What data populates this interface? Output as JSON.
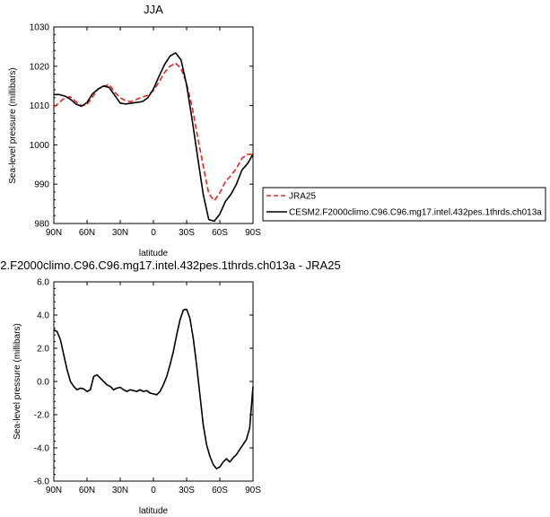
{
  "chart_data": [
    {
      "type": "line",
      "title": "JJA",
      "xlabel": "latitude",
      "ylabel": "Sea-level pressure (millibars)",
      "xlim": [
        90,
        -90
      ],
      "ylim": [
        980,
        1030
      ],
      "x_ticks": [
        90,
        60,
        30,
        0,
        -30,
        -60,
        -90
      ],
      "x_tick_labels": [
        "90N",
        "60N",
        "30N",
        "0",
        "30S",
        "60S",
        "90S"
      ],
      "y_ticks": [
        980,
        990,
        1000,
        1010,
        1020,
        1030
      ],
      "y_tick_labels": [
        "980",
        "990",
        "1000",
        "1010",
        "1020",
        "1030"
      ],
      "legend_placement": "right",
      "grid": false,
      "series": [
        {
          "name": "JRA25",
          "color": "#e8231f",
          "dash": "dashed",
          "x": [
            90,
            85,
            80,
            75,
            70,
            65,
            60,
            55,
            50,
            45,
            40,
            35,
            30,
            25,
            20,
            15,
            10,
            5,
            0,
            -5,
            -10,
            -15,
            -20,
            -25,
            -30,
            -35,
            -40,
            -45,
            -50,
            -55,
            -60,
            -65,
            -70,
            -75,
            -80,
            -85,
            -90
          ],
          "y": [
            1009.6,
            1010.8,
            1012.0,
            1012.2,
            1011.0,
            1010.0,
            1010.2,
            1012.2,
            1014.2,
            1014.8,
            1015.4,
            1013.4,
            1012.0,
            1011.2,
            1011.0,
            1011.6,
            1012.2,
            1012.6,
            1013.8,
            1016.0,
            1018.4,
            1020.0,
            1020.8,
            1019.4,
            1015.6,
            1009.6,
            1002.0,
            994.6,
            987.6,
            985.8,
            987.8,
            990.6,
            992.2,
            994.0,
            996.6,
            997.6,
            997.6
          ]
        },
        {
          "name": "CESM2.F2000climo.C96.C96.mg17.intel.432pes.1thrds.ch013a",
          "color": "#000000",
          "dash": "solid",
          "x": [
            90,
            85,
            80,
            75,
            70,
            65,
            60,
            55,
            50,
            45,
            40,
            35,
            30,
            25,
            20,
            15,
            10,
            5,
            0,
            -5,
            -10,
            -15,
            -20,
            -25,
            -30,
            -35,
            -40,
            -45,
            -50,
            -55,
            -60,
            -65,
            -70,
            -75,
            -80,
            -85,
            -90
          ],
          "y": [
            1012.8,
            1012.8,
            1012.4,
            1011.6,
            1010.4,
            1009.8,
            1010.8,
            1013.0,
            1014.2,
            1015.0,
            1014.6,
            1012.6,
            1010.6,
            1010.4,
            1010.6,
            1010.8,
            1011.0,
            1012.0,
            1014.2,
            1017.4,
            1020.4,
            1022.6,
            1023.4,
            1021.6,
            1015.2,
            1006.4,
            996.8,
            987.4,
            981.0,
            980.6,
            982.4,
            985.6,
            987.4,
            990.0,
            993.6,
            995.2,
            997.6
          ]
        }
      ]
    },
    {
      "type": "line",
      "title": "2.F2000climo.C96.C96.mg17.intel.432pes.1thrds.ch013a - JRA25",
      "xlabel": "latitude",
      "ylabel": "Sea-level pressure (millibars)",
      "xlim": [
        90,
        -90
      ],
      "ylim": [
        -6.0,
        6.0
      ],
      "x_ticks": [
        90,
        60,
        30,
        0,
        -30,
        -60,
        -90
      ],
      "x_tick_labels": [
        "90N",
        "60N",
        "30N",
        "0",
        "30S",
        "60S",
        "90S"
      ],
      "y_ticks": [
        -6,
        -4,
        -2,
        0,
        2,
        4,
        6
      ],
      "y_tick_labels": [
        "-6.0",
        "-4.0",
        "-2.0",
        "0.0",
        "2.0",
        "4.0",
        "6.0"
      ],
      "grid": false,
      "series": [
        {
          "color": "#000000",
          "dash": "solid",
          "x": [
            90,
            87,
            84,
            81,
            78,
            75,
            72,
            69,
            66,
            63,
            60,
            57,
            54,
            51,
            48,
            45,
            42,
            39,
            36,
            33,
            30,
            27,
            24,
            21,
            18,
            15,
            12,
            9,
            6,
            3,
            0,
            -3,
            -6,
            -9,
            -12,
            -15,
            -18,
            -21,
            -24,
            -27,
            -30,
            -33,
            -36,
            -39,
            -42,
            -45,
            -48,
            -51,
            -54,
            -57,
            -60,
            -63,
            -66,
            -69,
            -72,
            -75,
            -78,
            -81,
            -84,
            -87,
            -90
          ],
          "y": [
            3.1,
            3.0,
            2.5,
            1.6,
            0.7,
            0.0,
            -0.3,
            -0.5,
            -0.4,
            -0.45,
            -0.6,
            -0.5,
            0.3,
            0.4,
            0.2,
            0.0,
            -0.2,
            -0.3,
            -0.5,
            -0.4,
            -0.35,
            -0.5,
            -0.6,
            -0.5,
            -0.55,
            -0.6,
            -0.5,
            -0.6,
            -0.55,
            -0.7,
            -0.75,
            -0.8,
            -0.6,
            -0.2,
            0.3,
            1.0,
            1.8,
            2.8,
            3.7,
            4.3,
            4.35,
            3.8,
            2.6,
            1.0,
            -0.8,
            -2.6,
            -3.8,
            -4.5,
            -5.0,
            -5.25,
            -5.15,
            -4.85,
            -4.65,
            -4.85,
            -4.6,
            -4.4,
            -4.1,
            -3.8,
            -3.5,
            -2.8,
            -0.3
          ]
        }
      ]
    }
  ]
}
